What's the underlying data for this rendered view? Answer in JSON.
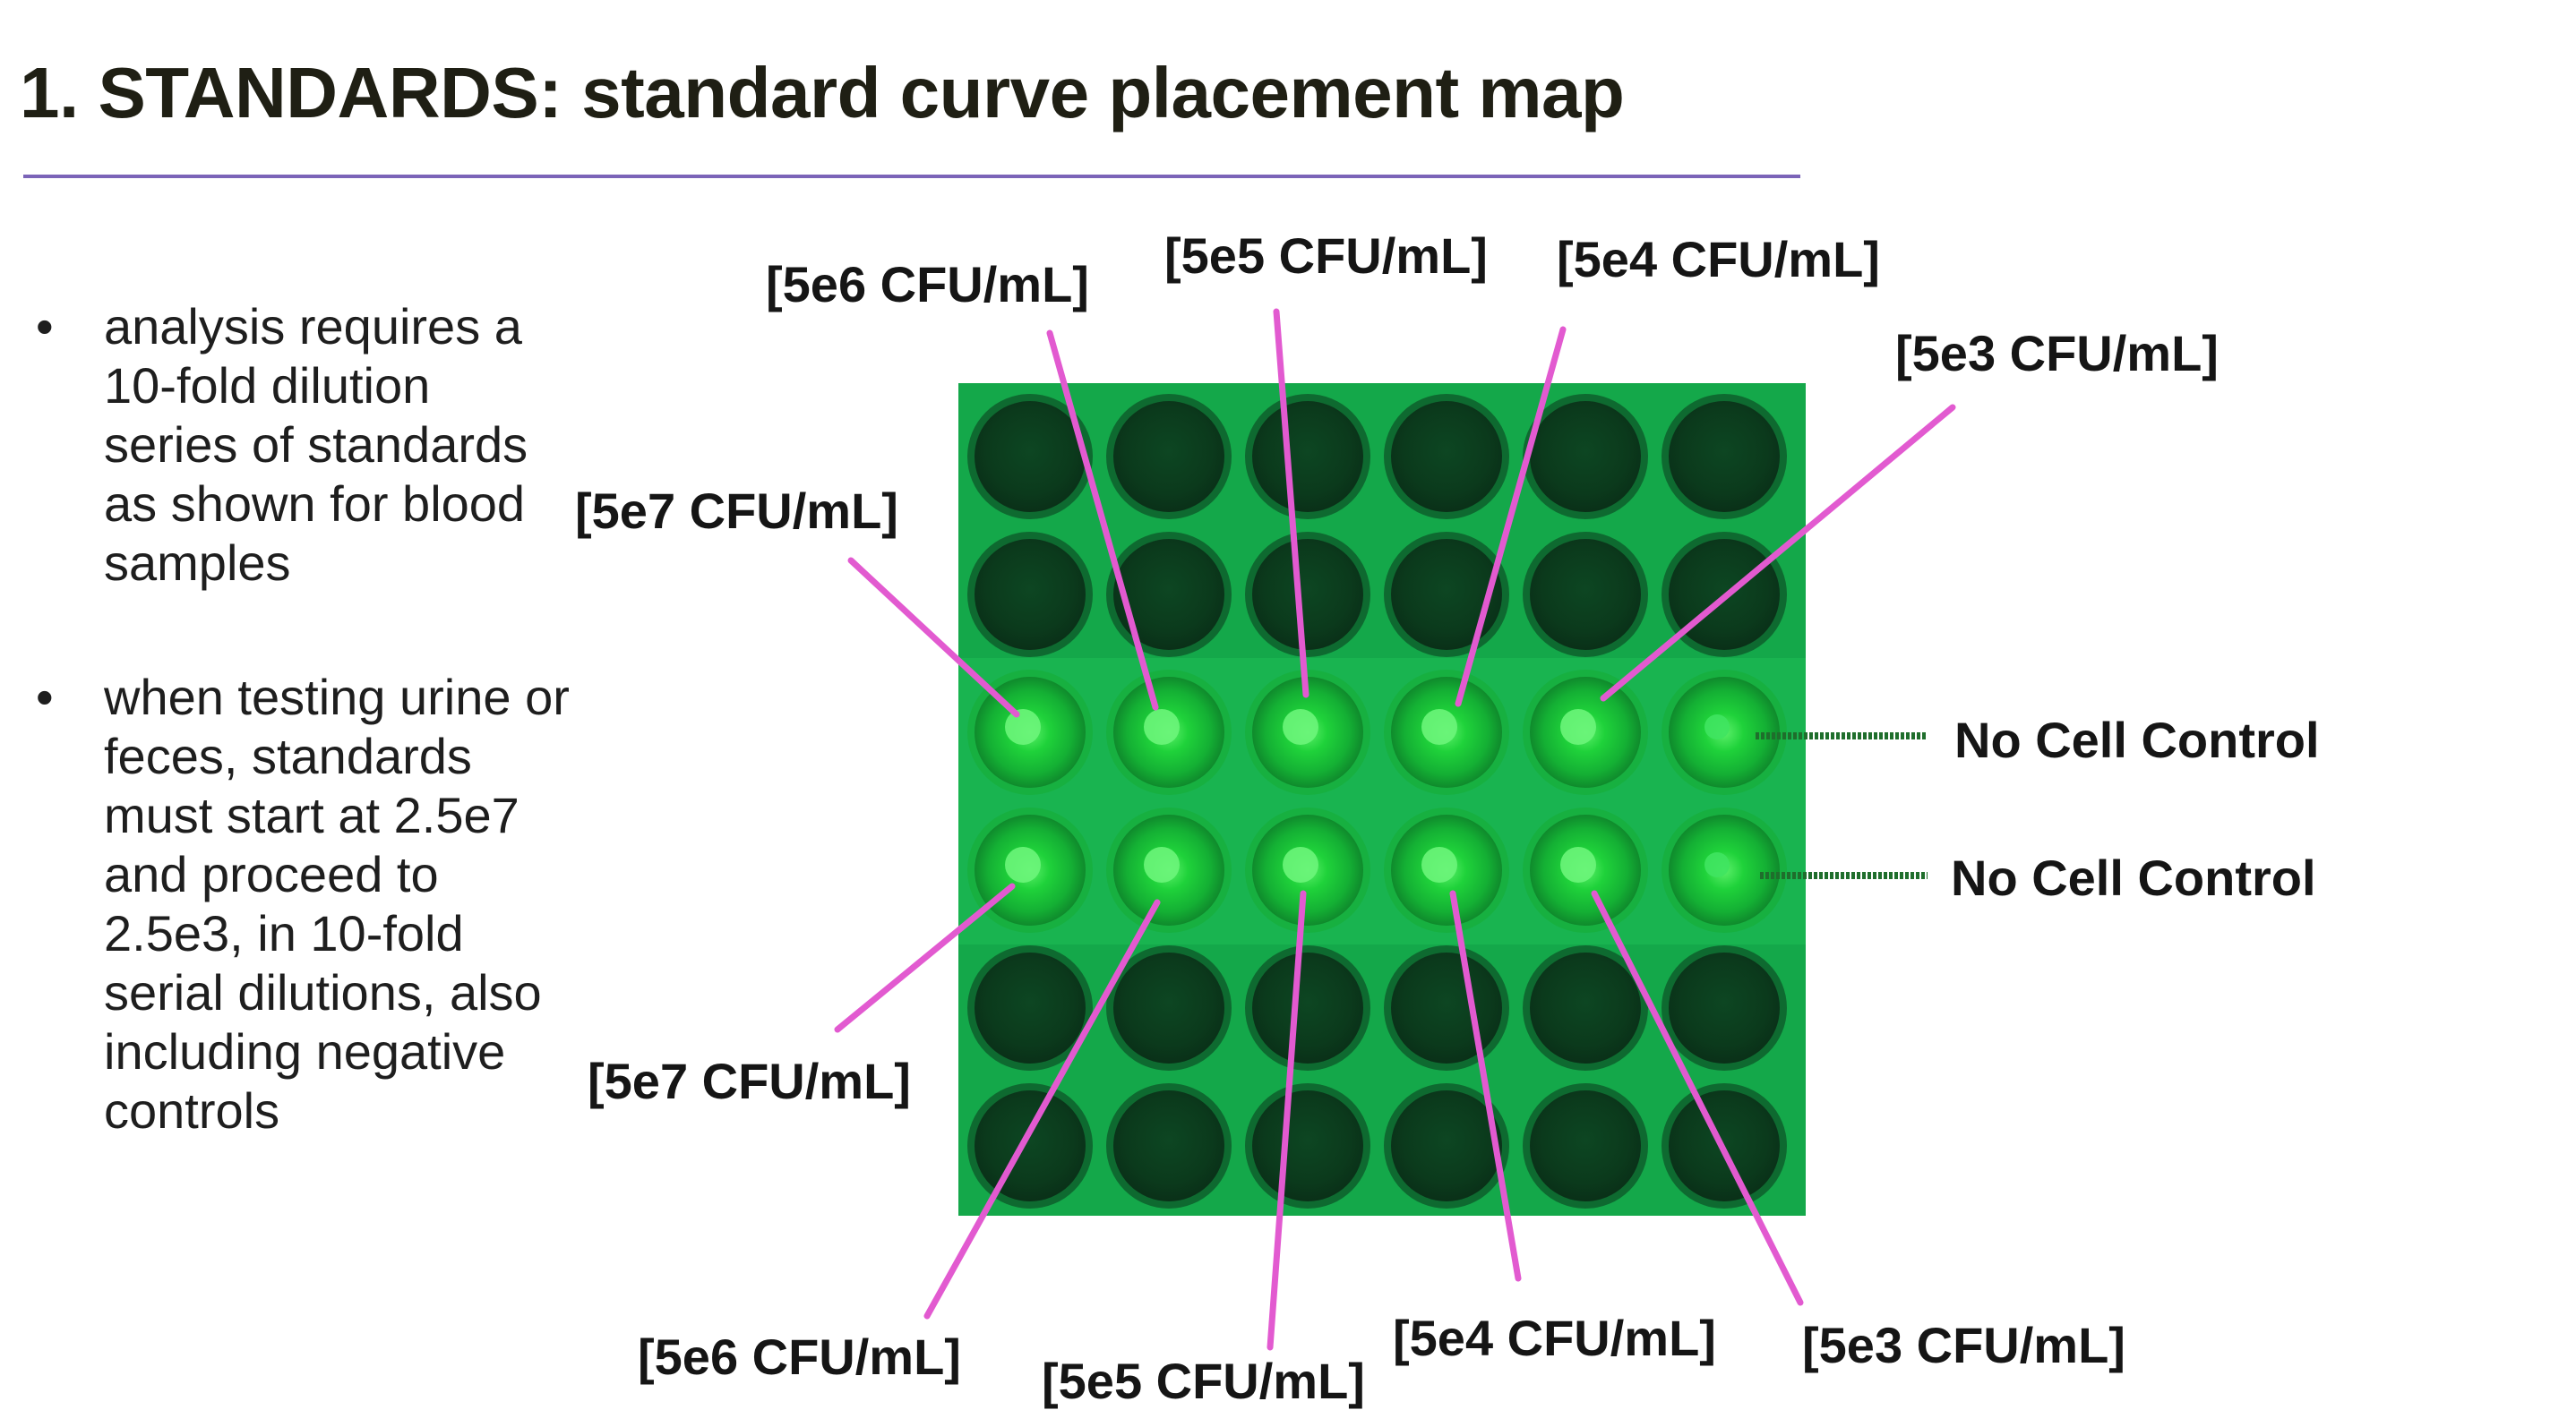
{
  "title": "1. STANDARDS: standard curve placement map",
  "bullets": [
    "analysis requires a 10-fold dilution series of standards as shown for blood samples",
    "when testing urine or feces, standards must start at 2.5e7 and proceed to 2.5e3, in 10-fold serial dilutions, also including negative controls"
  ],
  "bullet_symbol": "•",
  "labels": {
    "top": [
      "[5e7 CFU/mL]",
      "[5e6 CFU/mL]",
      "[5e5 CFU/mL]",
      "[5e4 CFU/mL]",
      "[5e3 CFU/mL]"
    ],
    "bottom": [
      "[5e7 CFU/mL]",
      "[5e6 CFU/mL]",
      "[5e5 CFU/mL]",
      "[5e4 CFU/mL]",
      "[5e3 CFU/mL]"
    ],
    "controls": [
      "No Cell Control",
      "No Cell Control"
    ]
  },
  "colors": {
    "plate": "#14a84a",
    "well_dark": "#0b3d1d",
    "well_lit": "#22d13a",
    "pointer": "#e25ad0",
    "control_pointer": "#1f6e2c",
    "rule": "#7b64b8"
  },
  "plate": {
    "rows": 6,
    "cols": 6,
    "lit_rows": [
      2,
      3
    ]
  }
}
